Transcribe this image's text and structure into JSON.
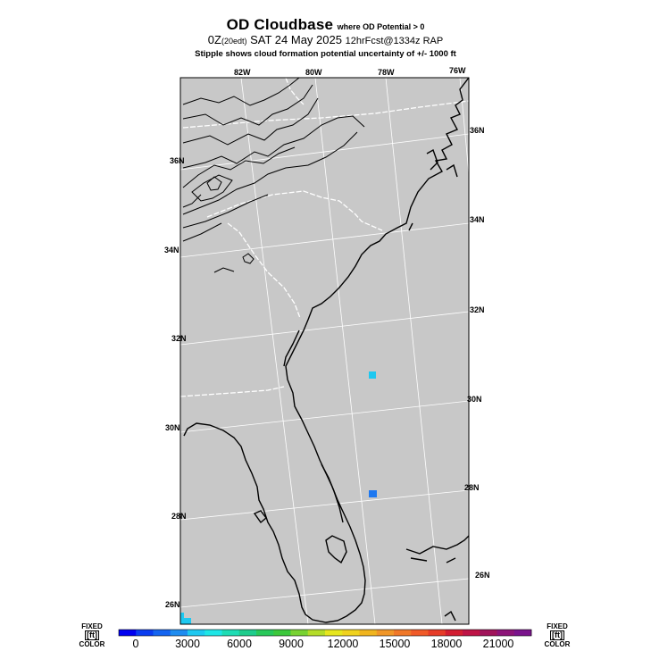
{
  "header": {
    "title_main": "OD Cloudbase",
    "title_note": "where OD Potential > 0",
    "run_prefix": "0Z",
    "run_local": "(20edt)",
    "run_date": "SAT 24 May 2025",
    "forecast": "12hrFcst@1334z RAP",
    "stipple_note": "Stipple shows cloud formation potential uncertainty of +/-  1000 ft"
  },
  "map": {
    "background_color": "#c8c8c8",
    "coast_color": "#000000",
    "border_color": "#ffffff",
    "grid_color": "#ffffff",
    "top_lon_labels": [
      "82W",
      "80W",
      "78W",
      "76W"
    ],
    "right_lat_labels": [
      "36N",
      "34N",
      "32N",
      "30N",
      "28N",
      "26N"
    ],
    "left_lat_labels": [
      "36N",
      "34N",
      "32N",
      "30N",
      "28N",
      "26N"
    ],
    "cells": [
      {
        "value_ft": 3000,
        "color": "#1ec8f0"
      },
      {
        "value_ft": 1500,
        "color": "#1e78f0"
      },
      {
        "value_ft": 3000,
        "color": "#1ec8f0"
      }
    ]
  },
  "legend": {
    "left_label_top": "FIXED",
    "left_unit": "[ft]",
    "left_label_bottom": "COLOR",
    "right_label_top": "FIXED",
    "right_unit": "[ft]",
    "right_label_bottom": "COLOR",
    "tick_labels": [
      "0",
      "3000",
      "6000",
      "9000",
      "12000",
      "15000",
      "18000",
      "21000"
    ],
    "colors": [
      "#0000f0",
      "#0a3cf0",
      "#1464f0",
      "#1e8cf0",
      "#1ec8f0",
      "#1ee6e6",
      "#1edcb4",
      "#1ecc8c",
      "#28c85a",
      "#3cc83c",
      "#78d232",
      "#b4dc28",
      "#e6e61e",
      "#f0d21e",
      "#f0b41e",
      "#f09628",
      "#f07828",
      "#f05a28",
      "#e63c28",
      "#d21e32",
      "#be1446",
      "#a0145a",
      "#8c1478",
      "#7a148c"
    ]
  }
}
